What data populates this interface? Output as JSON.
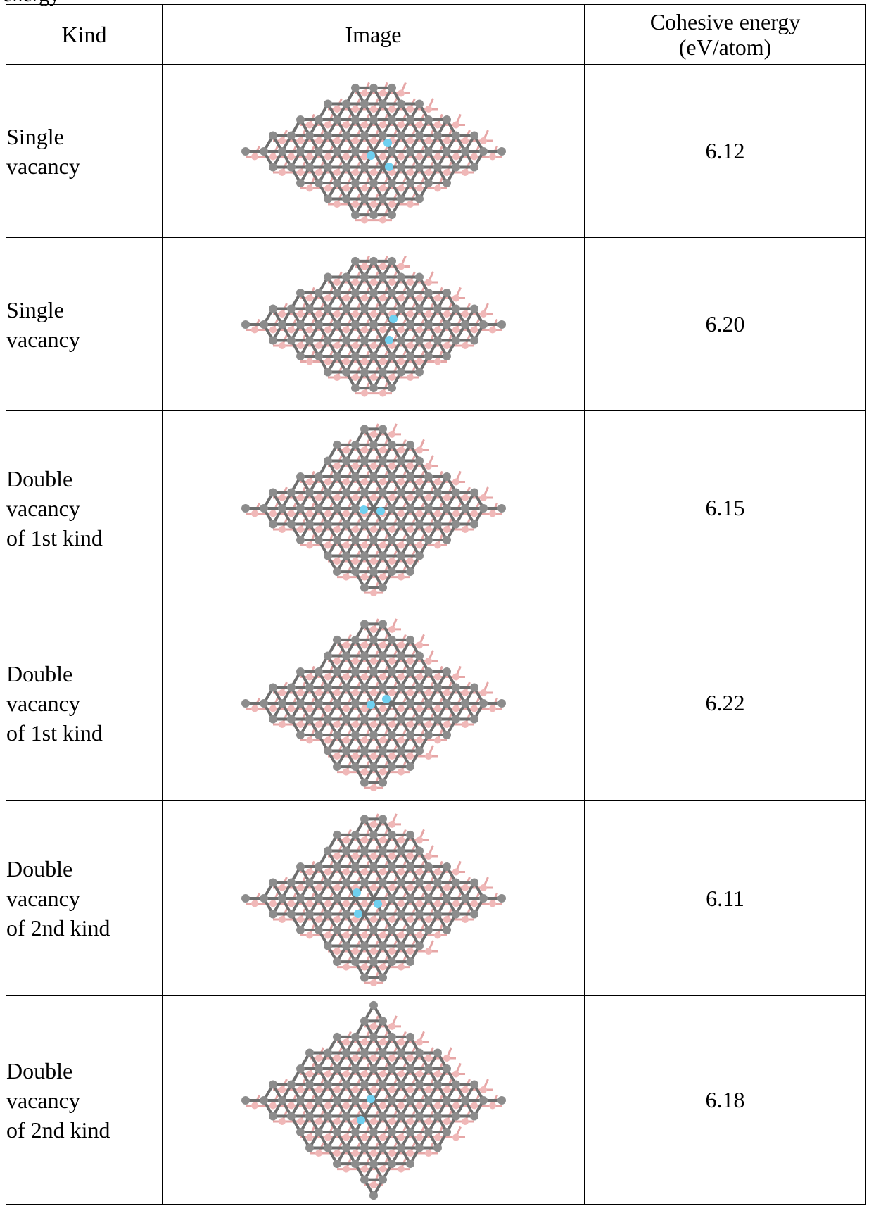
{
  "cutoff_caption": "energy",
  "table": {
    "headers": {
      "kind": "Kind",
      "image": "Image",
      "energy_line1": "Cohesive energy",
      "energy_line2": "(eV/atom)"
    },
    "rows": [
      {
        "kind_lines": [
          "Single",
          "vacancy",
          ""
        ],
        "energy": "6.12"
      },
      {
        "kind_lines": [
          "Single",
          "vacancy",
          ""
        ],
        "energy": "6.20"
      },
      {
        "kind_lines": [
          "Double",
          "vacancy",
          "of 1st kind"
        ],
        "energy": "6.15"
      },
      {
        "kind_lines": [
          "Double",
          "vacancy",
          "of 1st kind"
        ],
        "energy": "6.22"
      },
      {
        "kind_lines": [
          "Double",
          "vacancy",
          "of 2nd kind"
        ],
        "energy": "6.11"
      },
      {
        "kind_lines": [
          "Double",
          "vacancy",
          "of 2nd kind"
        ],
        "energy": "6.18"
      }
    ]
  },
  "colors": {
    "carbon_atom": "#8c8c8c",
    "boron_atom": "#f0b8b8",
    "defect_atom": "#6fd0f0",
    "bond_carbon": "#6e6e6e",
    "bond_boron": "#e6a6a6"
  },
  "icons": {
    "structure_image": "lattice-structure-icon",
    "defect_marker": "defect-atom-icon"
  }
}
